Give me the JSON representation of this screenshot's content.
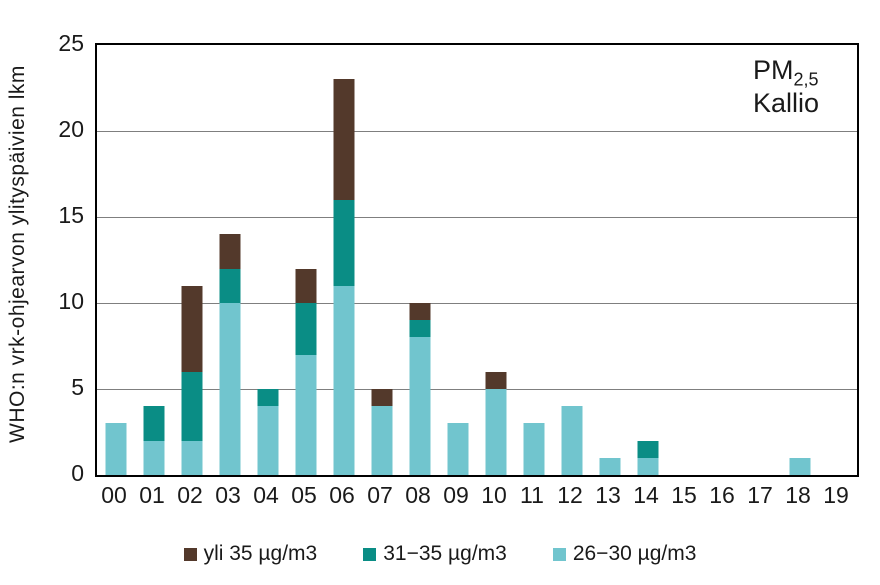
{
  "chart_data": {
    "type": "bar",
    "stacked": true,
    "ylabel": "WHO:n vrk-ohjearvon ylityspäivien lkm",
    "annotation": {
      "line1_main": "PM",
      "line1_sub": "2,5",
      "line2": "Kallio"
    },
    "categories": [
      "00",
      "01",
      "02",
      "03",
      "04",
      "05",
      "06",
      "07",
      "08",
      "09",
      "10",
      "11",
      "12",
      "13",
      "14",
      "15",
      "16",
      "17",
      "18",
      "19"
    ],
    "ylim": [
      0,
      25
    ],
    "y_ticks": [
      0,
      5,
      10,
      15,
      20,
      25
    ],
    "grid_values": [
      5,
      10,
      15,
      20
    ],
    "grid": true,
    "legend_position": "bottom",
    "colors": {
      "over35": "#53392B",
      "31to35": "#0A8D85",
      "26to30": "#71C5CE"
    },
    "series": [
      {
        "name": "yli 35 µg/m3",
        "color_key": "over35",
        "color": "#53392B",
        "values": [
          0,
          0,
          5,
          2,
          0,
          2,
          7,
          1,
          1,
          0,
          1,
          0,
          0,
          0,
          0,
          0,
          0,
          0,
          0,
          0
        ]
      },
      {
        "name": "31−35 µg/m3",
        "color_key": "31to35",
        "color": "#0A8D85",
        "values": [
          0,
          2,
          4,
          2,
          1,
          3,
          5,
          0,
          1,
          0,
          0,
          0,
          0,
          0,
          1,
          0,
          0,
          0,
          0,
          0
        ]
      },
      {
        "name": "26−30 µg/m3",
        "color_key": "26to30",
        "color": "#71C5CE",
        "values": [
          3,
          2,
          2,
          10,
          4,
          7,
          11,
          4,
          8,
          3,
          5,
          3,
          4,
          1,
          1,
          0,
          0,
          0,
          1,
          0
        ]
      }
    ],
    "totals": [
      3,
      4,
      11,
      14,
      5,
      12,
      23,
      5,
      10,
      3,
      6,
      3,
      4,
      1,
      2,
      0,
      0,
      0,
      1,
      0
    ]
  }
}
